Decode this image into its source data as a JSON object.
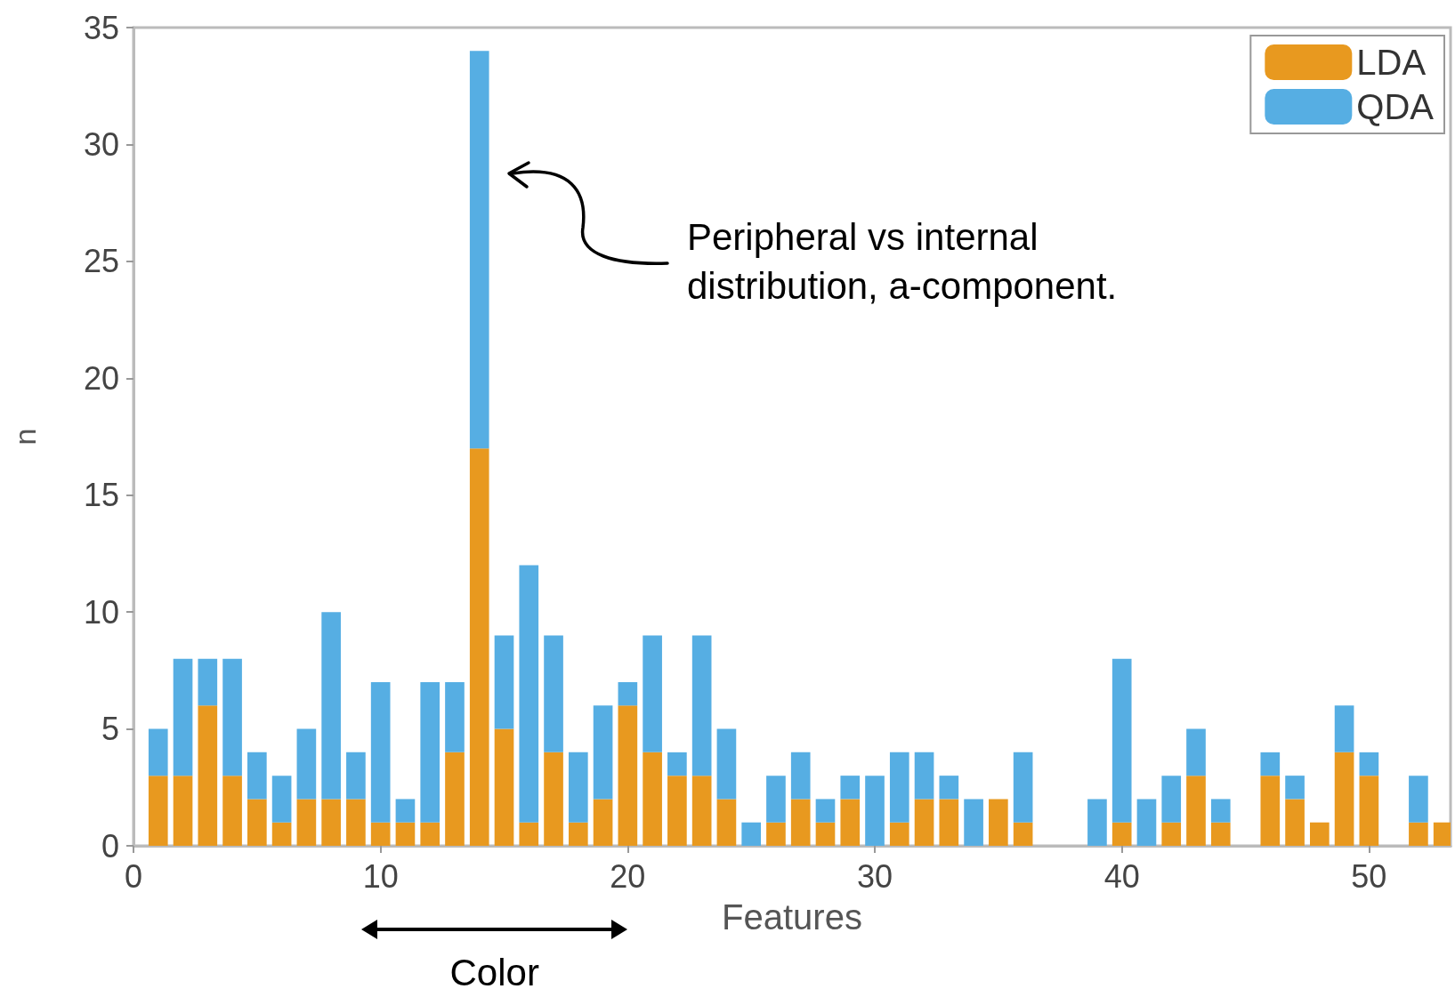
{
  "chart_data": {
    "type": "bar",
    "stacked": true,
    "xlabel": "Features",
    "ylabel": "n",
    "x": [
      1,
      2,
      3,
      4,
      5,
      6,
      7,
      8,
      9,
      10,
      11,
      12,
      13,
      14,
      15,
      16,
      17,
      18,
      19,
      20,
      21,
      22,
      23,
      24,
      25,
      26,
      27,
      28,
      29,
      30,
      31,
      32,
      33,
      34,
      35,
      36,
      37,
      38,
      39,
      40,
      41,
      42,
      43,
      44,
      45,
      46,
      47,
      48,
      49,
      50,
      51,
      52,
      53
    ],
    "series": [
      {
        "name": "LDA",
        "color": "#e8991f",
        "values": [
          3,
          3,
          6,
          3,
          2,
          1,
          2,
          2,
          2,
          1,
          1,
          1,
          4,
          17,
          5,
          1,
          4,
          1,
          2,
          6,
          4,
          3,
          3,
          2,
          0,
          1,
          2,
          1,
          2,
          0,
          1,
          2,
          2,
          0,
          2,
          1,
          0,
          0,
          0,
          1,
          0,
          1,
          3,
          1,
          0,
          3,
          2,
          1,
          4,
          3,
          0,
          1,
          1
        ]
      },
      {
        "name": "QDA",
        "color": "#56aee3",
        "values": [
          2,
          5,
          2,
          5,
          2,
          2,
          3,
          8,
          2,
          6,
          1,
          6,
          3,
          17,
          4,
          11,
          5,
          3,
          4,
          1,
          5,
          1,
          6,
          3,
          1,
          2,
          2,
          1,
          1,
          3,
          3,
          2,
          1,
          2,
          0,
          3,
          0,
          0,
          2,
          7,
          2,
          2,
          2,
          1,
          0,
          1,
          1,
          0,
          2,
          1,
          0,
          2,
          0
        ]
      }
    ],
    "xlim": [
      0,
      53.3
    ],
    "xticks": [
      0,
      10,
      20,
      30,
      40,
      50
    ],
    "ylim": [
      0,
      35
    ],
    "yticks": [
      0,
      5,
      10,
      15,
      20,
      25,
      30,
      35
    ],
    "grid": false,
    "legend": "top right",
    "annotations": [
      "Peripheral vs internal distribution, a-component.",
      "Color"
    ]
  }
}
